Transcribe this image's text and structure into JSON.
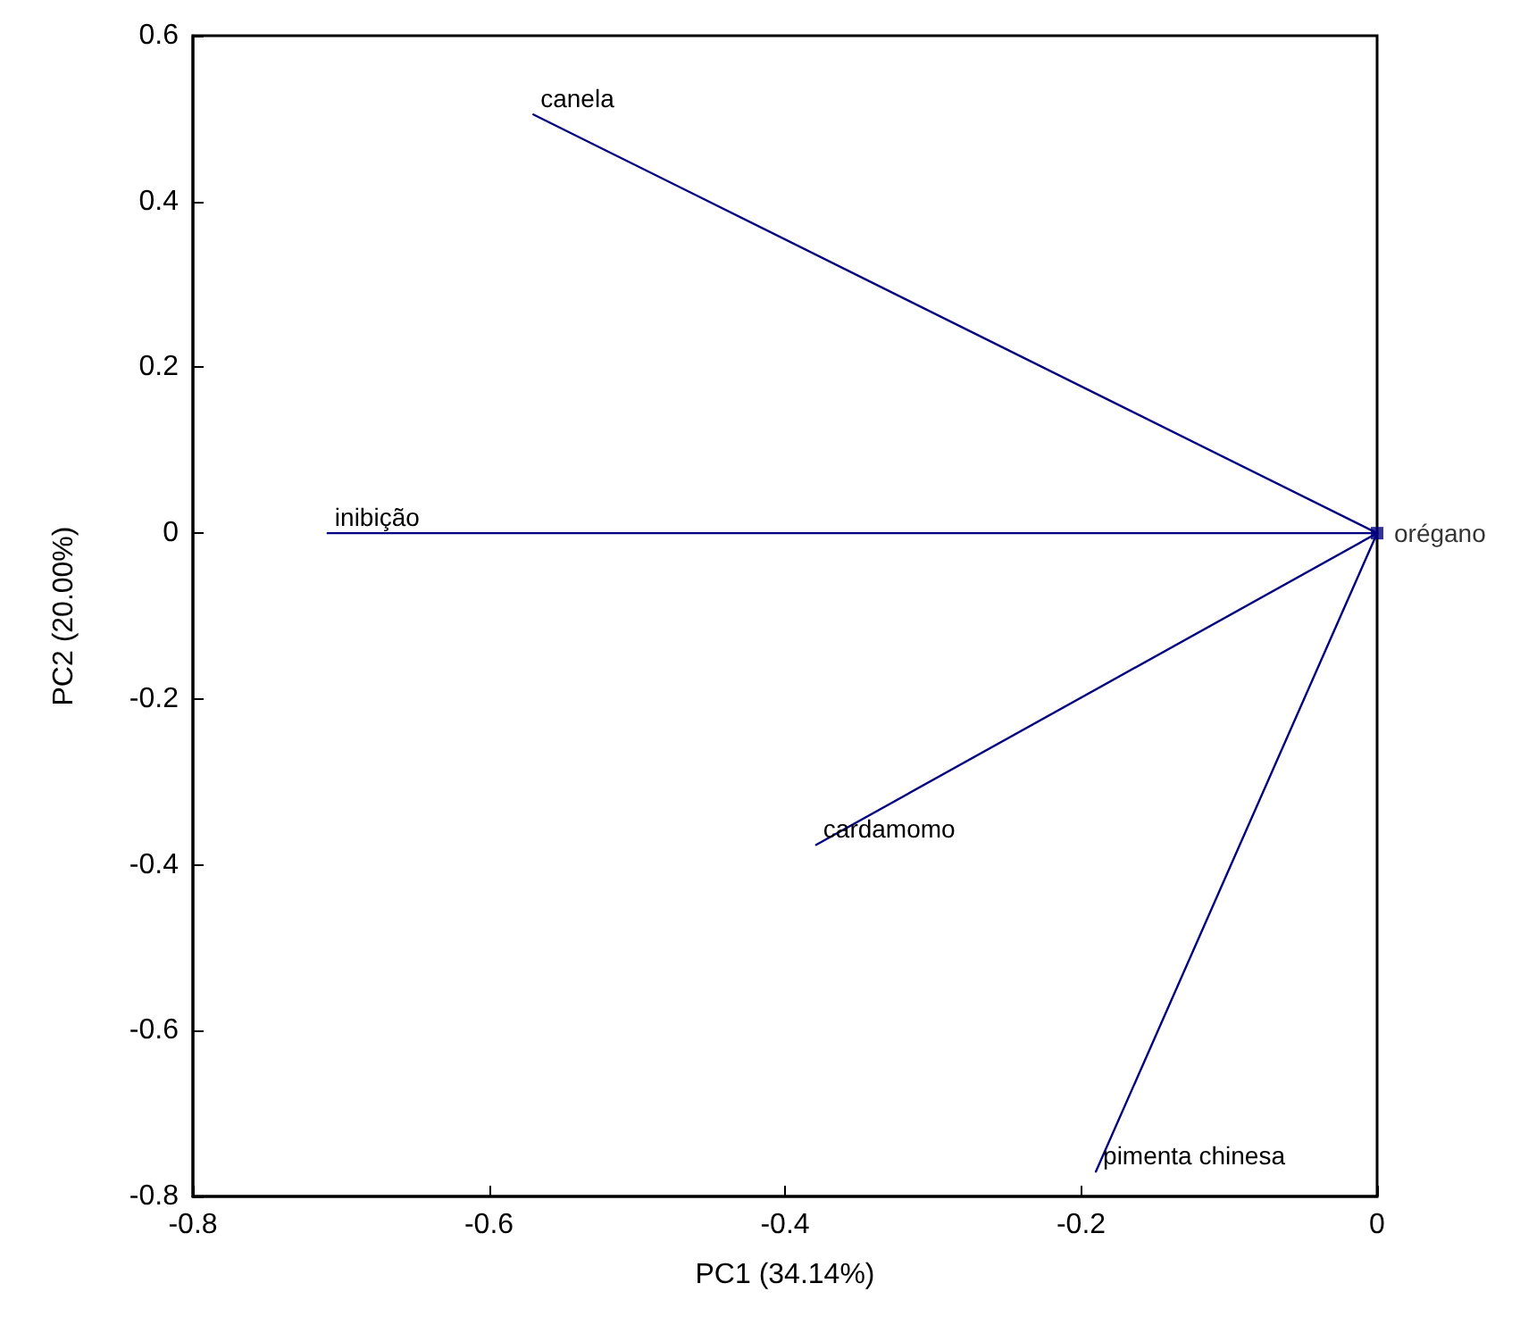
{
  "chart_data": {
    "type": "line",
    "xlabel": "PC1 (34.14%)",
    "ylabel": "PC2 (20.00%)",
    "xlim": [
      -0.8,
      0
    ],
    "xticks": [
      -0.8,
      -0.6,
      -0.4,
      -0.2,
      0
    ],
    "ylim": [
      -0.8,
      0.6
    ],
    "yticks": [
      -0.8,
      -0.6,
      -0.4,
      -0.2,
      0,
      0.2,
      0.4,
      0.6
    ],
    "grid": false,
    "legend": false,
    "marker": "none",
    "line_style": "solid",
    "series": [
      {
        "name": "canela",
        "color": "#000080",
        "x": [
          0,
          -0.57
        ],
        "values": [
          0,
          0.505
        ]
      },
      {
        "name": "inibição",
        "color": "#000080",
        "x": [
          0,
          -0.709
        ],
        "values": [
          0,
          0
        ]
      },
      {
        "name": "cardamomo",
        "color": "#000080",
        "x": [
          0,
          -0.379
        ],
        "values": [
          0,
          -0.376
        ]
      },
      {
        "name": "pimenta chinesa",
        "color": "#000080",
        "x": [
          0,
          -0.19
        ],
        "values": [
          0,
          -0.77
        ]
      },
      {
        "name": "orégano",
        "type": "scatter",
        "marker": "square",
        "color": "#000080",
        "x": [
          0
        ],
        "values": [
          0
        ]
      }
    ]
  }
}
